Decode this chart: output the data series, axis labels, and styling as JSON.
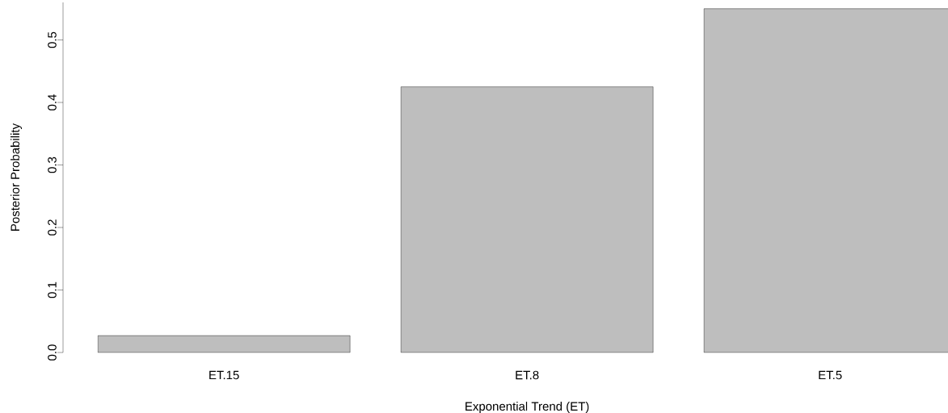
{
  "chart_data": {
    "type": "bar",
    "xlabel": "Exponential Trend (ET)",
    "ylabel": "Posterior Probability",
    "categories": [
      "ET.15",
      "ET.8",
      "ET.5"
    ],
    "values": [
      0.027,
      0.425,
      0.55
    ],
    "color": "#bebebe",
    "ylim": [
      0,
      0.56
    ],
    "yticks": [
      {
        "value": 0,
        "label": "0.0"
      },
      {
        "value": 0.1,
        "label": "0.1"
      },
      {
        "value": 0.2,
        "label": "0.2"
      },
      {
        "value": 0.3,
        "label": "0.3"
      },
      {
        "value": 0.4,
        "label": "0.4"
      },
      {
        "value": 0.5,
        "label": "0.5"
      }
    ]
  }
}
